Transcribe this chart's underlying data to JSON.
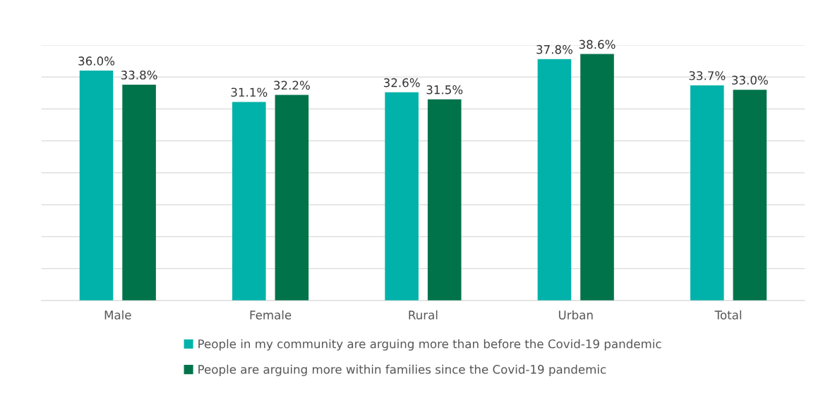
{
  "chart_data": {
    "type": "bar",
    "categories": [
      "Male",
      "Female",
      "Rural",
      "Urban",
      "Total"
    ],
    "series": [
      {
        "name": "People in my community are arguing more than before the Covid-19 pandemic",
        "color": "#00b2a9",
        "values": [
          36.0,
          31.1,
          32.6,
          37.8,
          33.7
        ],
        "value_labels": [
          "36.0%",
          "31.1%",
          "32.6%",
          "37.8%",
          "33.7%"
        ]
      },
      {
        "name": "People are arguing more within families since the Covid-19 pandemic",
        "color": "#00734a",
        "values": [
          33.8,
          32.2,
          31.5,
          38.6,
          33.0
        ],
        "value_labels": [
          "33.8%",
          "32.2%",
          "31.5%",
          "38.6%",
          "33.0%"
        ]
      }
    ],
    "ylim": [
      0,
      40
    ],
    "yticks": [
      {
        "value": 0,
        "label": null
      },
      {
        "value": 5,
        "label": null
      },
      {
        "value": 10,
        "label": null
      },
      {
        "value": 15,
        "label": null
      },
      {
        "value": 20,
        "label": null
      },
      {
        "value": 25,
        "label": null
      },
      {
        "value": 30,
        "label": null
      },
      {
        "value": 35,
        "label": null
      },
      {
        "value": 40,
        "label": null
      }
    ],
    "tick_labels": "x",
    "grid": "y",
    "legend": "bottom"
  }
}
